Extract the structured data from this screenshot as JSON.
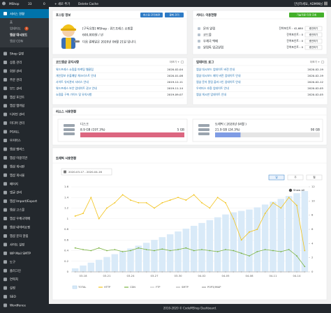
{
  "admin_bar": {
    "site": "MShop",
    "updates": "33",
    "comments": "0",
    "new": "+ 새로 추가",
    "cache": "Delete Cache",
    "greeting": "안녕하세요, ADMIN님"
  },
  "sidebar": {
    "active": "서비스 현황",
    "submenu": [
      {
        "label": "홈"
      },
      {
        "label": "업데이트",
        "badge": "3"
      },
      {
        "label": "엠샵 대시보드"
      },
      {
        "label": "엠샵 CDN"
      }
    ],
    "items": [
      "Shop 설정",
      "상품 관리",
      "회원 관리",
      "주문 관리",
      "보드 관리",
      "엠샵 포인트",
      "엠샵 멤버쉽",
      "디자인 관리",
      "미디어 관리",
      "PGALL",
      "우커머스",
      "엠샵 멤버스",
      "엠샵 이용약관",
      "엠샵 게시판",
      "엠샵 게시물",
      "페이지",
      "댓글 관리",
      "엠샵 Import/Export",
      "엠샵 고스몰",
      "엠샵 우체국택배",
      "엠샵 네이버쇼핑",
      "엠샵 문자 알림",
      "사이트 설정",
      "WP Mail SMTP",
      "도구",
      "플러그인",
      "연락처",
      "설정",
      "SEO",
      "Wordfence"
    ]
  },
  "hosting": {
    "title": "호스팅 정보",
    "buttons": [
      "호스팅 관리화면",
      "결제 관리"
    ],
    "plan": "[구독유형] MShop - 워드프레스 쇼핑몰",
    "price": "600,000원 / 년",
    "next_payment": "다음 결제일은 2020년 06월 21일 입니다."
  },
  "service": {
    "title": "서비스 이용현황",
    "button": "기술지원 티켓 조회",
    "rows": [
      {
        "name": "문자 알림",
        "points": "잔여포인트 : 42,680",
        "action": "충전하기"
      },
      {
        "name": "코드몰",
        "points": "잔여포인트 : 0",
        "action": "충전하기"
      },
      {
        "name": "우체국 택배",
        "points": "잔여포인트 : 0",
        "action": "충전하기"
      },
      {
        "name": "알림톡 입금알림",
        "points": "잔여포인트 : 0",
        "action": "충전하기"
      }
    ]
  },
  "notices": {
    "title": "코드엠샵 공지사항",
    "more": "더보기 +",
    "items": [
      {
        "title": "워드프레스 쇼핑몰 마케팅 웹클립",
        "date": "2020-02-04"
      },
      {
        "title": "개인정보 유출예방 체크리스트 안내",
        "date": "2020-01-08"
      },
      {
        "title": "사이트 유지관리 서비스 안내",
        "date": "2019-12-11"
      },
      {
        "title": "워드프레스 보안 업데이트 권고 안내",
        "date": "2019-11-14"
      },
      {
        "title": "쇼핑몰 구축 가이드 및 유의사항",
        "date": "2019-09-07"
      }
    ]
  },
  "updates": {
    "title": "업데이트 로그",
    "more": "더보기 +",
    "items": [
      {
        "title": "엠샵 대시보드 업데이트 버전 안내",
        "date": "2020-02-19"
      },
      {
        "title": "엠샵 대시보드 패치 버전 업데이트 안내",
        "date": "2020-02-19"
      },
      {
        "title": "엠샵 문자 알림 플러그인 업데이트 안내",
        "date": "2020-02-12"
      },
      {
        "title": "우커머스 호환 업데이트 안내",
        "date": "2020-02-05"
      },
      {
        "title": "엠샵 게시판 업데이트 안내",
        "date": "2020-02-05"
      }
    ]
  },
  "resources": {
    "title": "리소스 사용현황",
    "disk": {
      "label": "디스크",
      "used": "8.9 GB (197.3%)",
      "total": "5 GB",
      "percent": 197.3,
      "color": "#dc6680"
    },
    "traffic": {
      "label": "트래픽 ( 2020년 04월 )",
      "used": "21.9 GB (24.3%)",
      "total": "90 GB",
      "percent": 24.3,
      "color": "#7f9ce4"
    }
  },
  "chart_data": {
    "type": "bar-line",
    "title": "트래픽 사용현황",
    "date_range": "2020-03-17 - 2020-04-16",
    "periods": [
      "일",
      "주",
      "월"
    ],
    "show_all": "Show all",
    "categories": [
      null,
      "03-18",
      null,
      null,
      "03-21",
      null,
      null,
      "03-24",
      null,
      null,
      "03-27",
      null,
      null,
      "03-30",
      null,
      null,
      "04-02",
      null,
      null,
      "04-05",
      null,
      null,
      "04-08",
      null,
      null,
      "04-11",
      null,
      null,
      "04-14",
      null
    ],
    "ylim": [
      0,
      1.6
    ],
    "yticks": [
      0,
      0.2,
      0.4,
      0.6,
      0.8,
      1,
      1.2,
      1.4,
      1.6
    ],
    "y2lim": [
      0,
      12
    ],
    "y2ticks": [
      0,
      2,
      4,
      6,
      8,
      10,
      12
    ],
    "grid": true,
    "series": [
      {
        "name": "TOTAL",
        "color": "#d9eaf8",
        "axis": "y2",
        "values": [
          0.5,
          0.9,
          1.3,
          1.7,
          2.1,
          2.5,
          2.9,
          3.3,
          3.7,
          4.1,
          4.5,
          4.9,
          5.3,
          5.7,
          6.1,
          6.5,
          6.9,
          7.3,
          7.7,
          8.1,
          8.4,
          8.6,
          8.8,
          9.1,
          9.5,
          9.9,
          10.3,
          10.7,
          11.1,
          11.4
        ]
      },
      {
        "name": "HTTP",
        "color": "#f2c31b",
        "values": [
          1.05,
          1.1,
          1.4,
          1.0,
          1.2,
          1.3,
          1.45,
          1.35,
          1.3,
          1.3,
          1.2,
          1.3,
          1.35,
          1.4,
          1.35,
          1.45,
          1.3,
          1.2,
          1.4,
          1.3,
          1.0,
          0.6,
          0.75,
          0.8,
          1.1,
          1.3,
          1.2,
          1.4,
          1.25,
          0.4
        ]
      },
      {
        "name": "CDN",
        "color": "#7cb342",
        "values": [
          0.45,
          0.42,
          0.4,
          0.45,
          0.4,
          0.42,
          0.38,
          0.4,
          0.45,
          0.42,
          0.4,
          0.43,
          0.4,
          0.42,
          0.45,
          0.4,
          0.42,
          0.4,
          0.38,
          0.42,
          0.4,
          0.35,
          0.3,
          0.38,
          0.42,
          0.4,
          0.38,
          0.42,
          0.3,
          0.1
        ]
      },
      {
        "name": "FTP",
        "color": "#c8c8c8",
        "values": [
          0,
          0,
          0,
          0,
          0,
          0,
          0,
          0,
          0,
          0,
          0,
          0,
          0,
          0,
          0,
          0,
          0,
          0,
          0,
          0,
          0,
          0,
          0,
          0,
          0,
          0,
          0,
          0,
          0,
          0
        ]
      },
      {
        "name": "SMTP",
        "color": "#b5b5b5",
        "values": [
          0,
          0,
          0,
          0,
          0,
          0,
          0,
          0,
          0,
          0,
          0,
          0,
          0,
          0,
          0,
          0,
          0,
          0,
          0,
          0,
          0,
          0,
          0,
          0,
          0,
          0,
          0,
          0,
          0,
          0
        ]
      },
      {
        "name": "POP3/IMAP",
        "color": "#a0a0a0",
        "values": [
          0,
          0,
          0,
          0,
          0,
          0,
          0,
          0,
          0,
          0,
          0,
          0,
          0,
          0,
          0,
          0,
          0,
          0,
          0,
          0,
          0,
          0,
          0,
          0,
          0,
          0,
          0,
          0,
          0,
          0
        ]
      }
    ]
  },
  "footer": "2010-2020 © CodeMShop Dashboard."
}
